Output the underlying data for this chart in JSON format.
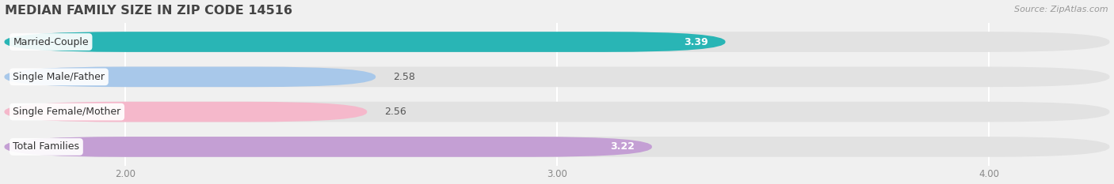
{
  "title": "MEDIAN FAMILY SIZE IN ZIP CODE 14516",
  "source": "Source: ZipAtlas.com",
  "categories": [
    "Married-Couple",
    "Single Male/Father",
    "Single Female/Mother",
    "Total Families"
  ],
  "values": [
    3.39,
    2.58,
    2.56,
    3.22
  ],
  "bar_colors": [
    "#29b5b5",
    "#a8c8ea",
    "#f5b8cb",
    "#c49fd4"
  ],
  "value_text_colors": [
    "#ffffff",
    "#777777",
    "#777777",
    "#ffffff"
  ],
  "xmin": 1.72,
  "xmax": 4.28,
  "xticks": [
    2.0,
    3.0,
    4.0
  ],
  "xtick_labels": [
    "2.00",
    "3.00",
    "4.00"
  ],
  "bar_height": 0.58,
  "background_color": "#f0f0f0",
  "bar_bg_color": "#e2e2e2",
  "title_fontsize": 11.5,
  "label_fontsize": 9,
  "value_fontsize": 9,
  "tick_fontsize": 8.5,
  "source_fontsize": 8
}
